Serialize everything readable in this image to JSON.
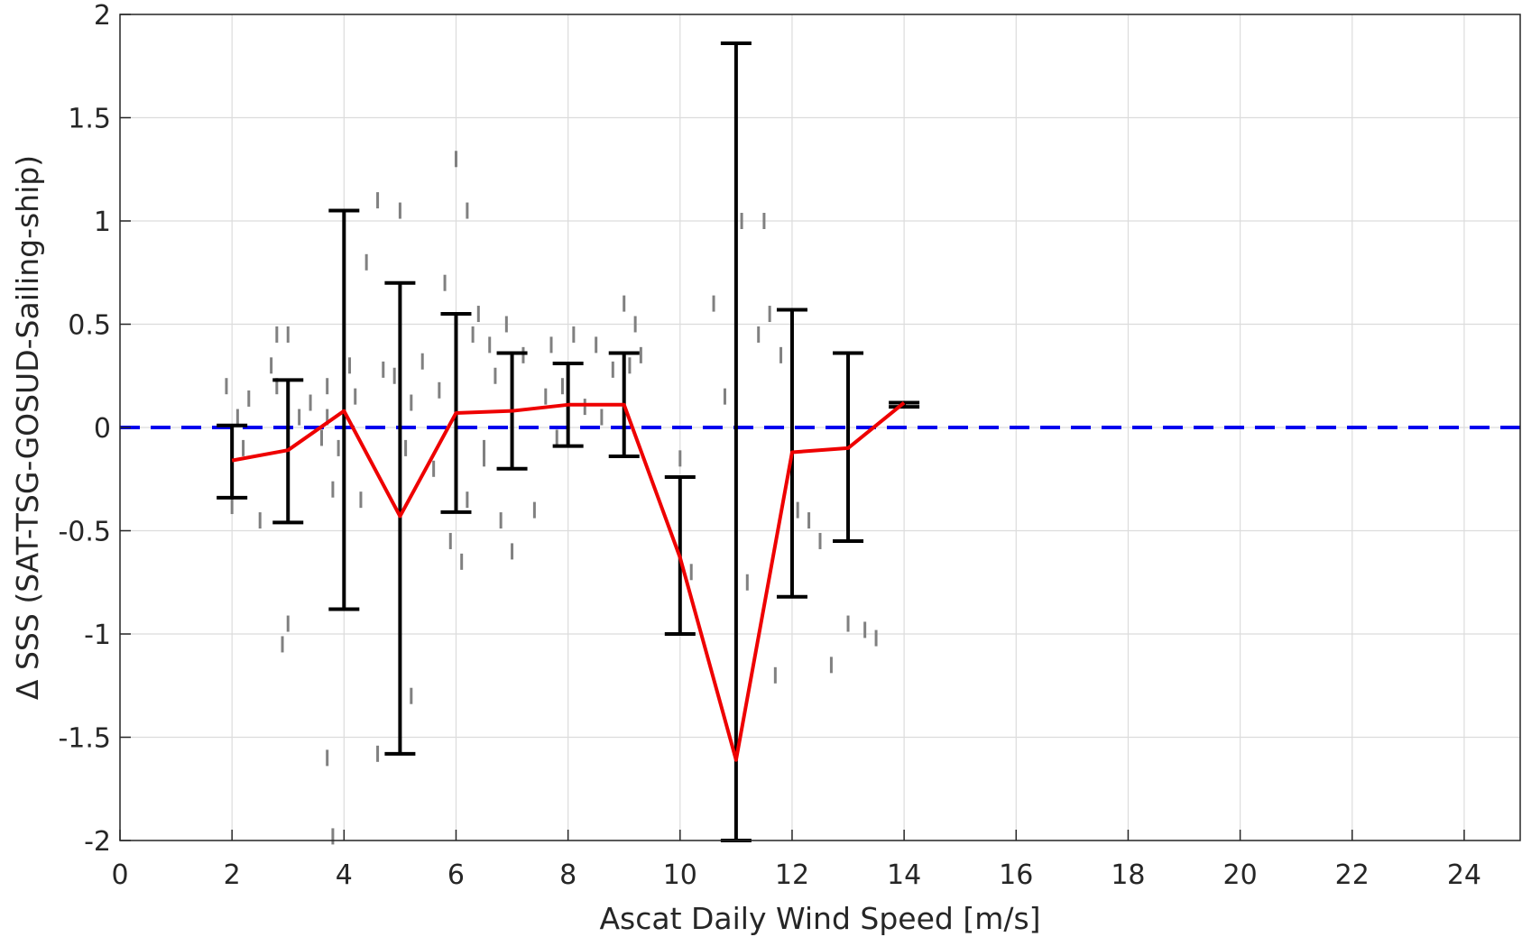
{
  "chart_data": {
    "type": "line",
    "xlabel": "Ascat Daily Wind Speed [m/s]",
    "ylabel": "Δ SSS (SAT-TSG-GOSUD-Sailing-ship)",
    "xlim": [
      0,
      25
    ],
    "ylim": [
      -2,
      2
    ],
    "xticks": [
      0,
      2,
      4,
      6,
      8,
      10,
      12,
      14,
      16,
      18,
      20,
      22,
      24
    ],
    "yticks": [
      2,
      1.5,
      1,
      0.5,
      0,
      -0.5,
      -1,
      -1.5,
      -2
    ],
    "ytick_labels": [
      "2",
      "1.5",
      "1",
      "0.5",
      "0",
      "-0.5",
      "-1",
      "-1.5",
      "-2"
    ],
    "grid": true,
    "reference_line": {
      "y": 0,
      "style": "dashed",
      "color": "#0000ee"
    },
    "mean_series": {
      "color": "#ee0000",
      "x": [
        2,
        3,
        4,
        5,
        6,
        7,
        8,
        9,
        10,
        11,
        12,
        13,
        14
      ],
      "y": [
        -0.16,
        -0.11,
        0.08,
        -0.43,
        0.07,
        0.08,
        0.11,
        0.11,
        -0.63,
        -1.61,
        -0.12,
        -0.1,
        0.12
      ]
    },
    "error_bars": {
      "color": "#000000",
      "x": [
        2,
        3,
        4,
        5,
        6,
        7,
        8,
        9,
        10,
        11,
        12,
        13,
        14
      ],
      "upper": [
        0.01,
        0.23,
        1.05,
        0.7,
        0.55,
        0.36,
        0.31,
        0.36,
        -0.24,
        1.86,
        0.57,
        0.36,
        0.12
      ],
      "lower": [
        -0.34,
        -0.46,
        -0.88,
        -1.58,
        -0.41,
        -0.2,
        -0.09,
        -0.14,
        -1.0,
        -2.0,
        -0.82,
        -0.55,
        0.1
      ]
    },
    "scatter": {
      "color": "#808080",
      "x": [
        1.9,
        2.0,
        2.1,
        2.2,
        2.3,
        2.5,
        2.7,
        2.8,
        2.9,
        3.0,
        3.2,
        3.4,
        3.6,
        3.7,
        3.8,
        3.9,
        4.1,
        4.2,
        4.3,
        4.4,
        4.6,
        4.7,
        4.9,
        5.0,
        5.1,
        5.2,
        5.4,
        5.6,
        5.7,
        5.8,
        5.9,
        6.0,
        6.1,
        6.2,
        6.3,
        6.4,
        6.5,
        6.6,
        6.7,
        6.8,
        6.9,
        7.0,
        7.2,
        7.4,
        7.6,
        7.7,
        7.8,
        7.9,
        8.1,
        8.3,
        8.5,
        8.6,
        8.8,
        9.0,
        9.1,
        9.2,
        9.3,
        10.0,
        10.2,
        10.6,
        10.8,
        11.0,
        11.1,
        11.2,
        11.4,
        11.5,
        11.6,
        11.7,
        11.8,
        12.0,
        12.1,
        12.3,
        12.5,
        12.7,
        13.0,
        13.3,
        13.5,
        3.0,
        3.7,
        3.8,
        4.6,
        5.2,
        6.2,
        6.5,
        2.8,
        3.7
      ],
      "y": [
        0.2,
        -0.38,
        0.05,
        -0.1,
        0.14,
        -0.45,
        0.3,
        0.45,
        -1.05,
        -0.95,
        0.05,
        0.12,
        -0.05,
        0.2,
        -0.3,
        -0.1,
        0.3,
        0.15,
        -0.35,
        0.8,
        1.1,
        0.28,
        0.25,
        1.05,
        -0.1,
        0.12,
        0.32,
        -0.2,
        0.18,
        0.7,
        -0.55,
        1.3,
        -0.65,
        1.05,
        0.45,
        0.55,
        -0.1,
        0.4,
        0.25,
        -0.45,
        0.5,
        -0.6,
        0.35,
        -0.4,
        0.15,
        0.4,
        -0.05,
        0.2,
        0.45,
        0.1,
        0.4,
        0.05,
        0.28,
        0.6,
        0.3,
        0.5,
        0.35,
        -0.15,
        -0.7,
        0.6,
        0.15,
        0.75,
        1.0,
        -0.75,
        0.45,
        1.0,
        0.55,
        -1.2,
        0.35,
        0.25,
        -0.4,
        -0.45,
        -0.55,
        -1.15,
        -0.95,
        -0.98,
        -1.02,
        0.45,
        -1.6,
        -1.98,
        -1.58,
        -1.3,
        -0.35,
        -0.15,
        0.2,
        0.05
      ]
    }
  }
}
